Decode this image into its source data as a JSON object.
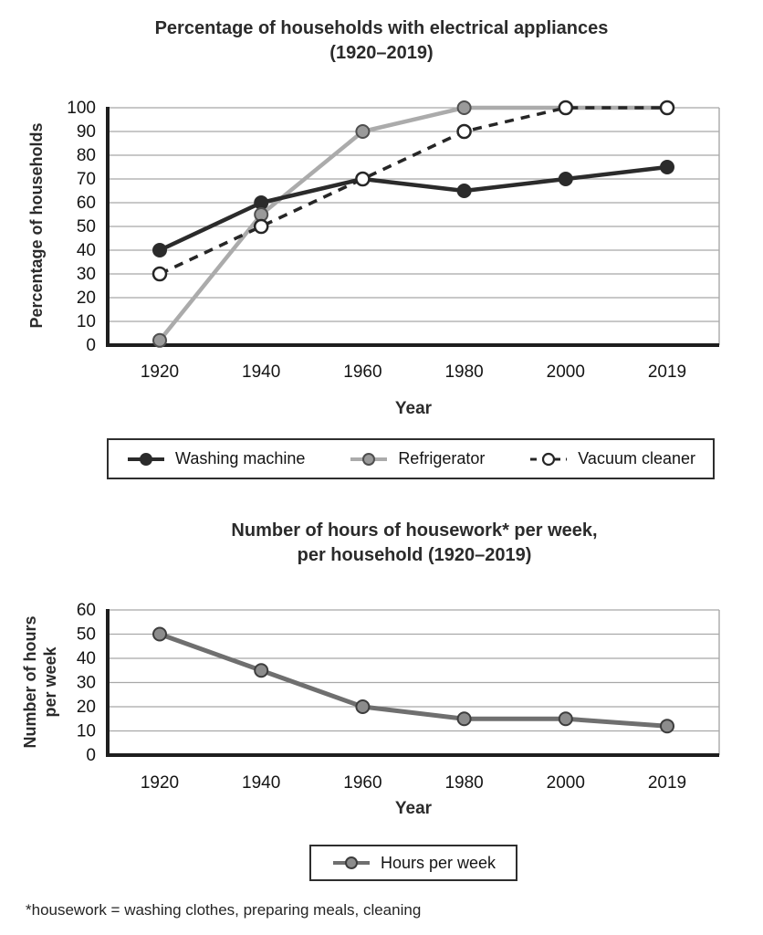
{
  "page": {
    "footnote": "*housework = washing clothes, preparing meals, cleaning"
  },
  "chart_data": [
    {
      "type": "line",
      "title": "Percentage of households with electrical appliances (1920–2019)",
      "title_lines": [
        "Percentage of households with electrical appliances",
        "(1920–2019)"
      ],
      "ylabel_lines": [
        "Percentage of households"
      ],
      "xlabel": "Year",
      "categories": [
        "1920",
        "1940",
        "1960",
        "1980",
        "2000",
        "2019"
      ],
      "ylim": [
        0,
        100
      ],
      "ytick_step": 10,
      "grid": true,
      "legend_position": "bottom-boxed",
      "series": [
        {
          "name": "Washing machine",
          "values": [
            40,
            60,
            70,
            65,
            70,
            75
          ],
          "color": "#2b2b2b",
          "dash": "none",
          "line_width": 4.5,
          "marker": "filled",
          "marker_fill": "#2b2b2b",
          "marker_stroke": "#2b2b2b"
        },
        {
          "name": "Refrigerator",
          "values": [
            2,
            55,
            90,
            100,
            100,
            100
          ],
          "color": "#ababab",
          "dash": "none",
          "line_width": 4.5,
          "marker": "filled-gray",
          "marker_fill": "#9a9a9a",
          "marker_stroke": "#4f4f4f"
        },
        {
          "name": "Vacuum cleaner",
          "values": [
            30,
            50,
            70,
            90,
            100,
            100
          ],
          "color": "#262626",
          "dash": "10,8",
          "line_width": 3.5,
          "marker": "open",
          "marker_fill": "#ffffff",
          "marker_stroke": "#262626"
        }
      ]
    },
    {
      "type": "line",
      "title": "Number of hours of housework* per week, per household (1920–2019)",
      "title_lines": [
        "Number of hours of housework* per week,",
        "per household (1920–2019)"
      ],
      "ylabel_lines": [
        "Number of hours",
        "per week"
      ],
      "xlabel": "Year",
      "categories": [
        "1920",
        "1940",
        "1960",
        "1980",
        "2000",
        "2019"
      ],
      "ylim": [
        0,
        60
      ],
      "ytick_step": 10,
      "grid": true,
      "legend_position": "bottom-boxed",
      "series": [
        {
          "name": "Hours per week",
          "values": [
            50,
            35,
            20,
            15,
            15,
            12
          ],
          "color": "#6f6f6f",
          "dash": "none",
          "line_width": 5,
          "marker": "filled-gray",
          "marker_fill": "#8c8c8c",
          "marker_stroke": "#3d3d3d"
        }
      ]
    }
  ]
}
